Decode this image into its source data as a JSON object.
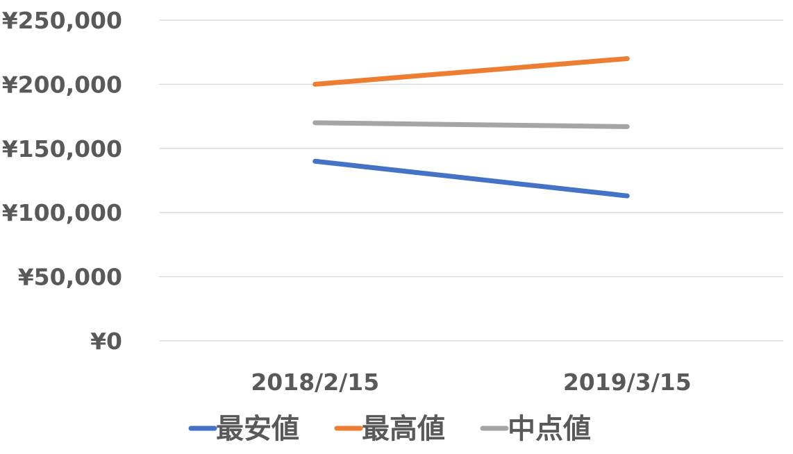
{
  "chart_data": {
    "type": "line",
    "title": "",
    "xlabel": "",
    "ylabel": "",
    "categories": [
      "2018/2/15",
      "2019/3/15"
    ],
    "ylim": [
      0,
      250000
    ],
    "yticks": [
      0,
      50000,
      100000,
      150000,
      200000,
      250000
    ],
    "ytick_labels": [
      "¥0",
      "¥50,000",
      "¥100,000",
      "¥150,000",
      "¥200,000",
      "¥250,000"
    ],
    "grid": true,
    "legend_position": "bottom",
    "series": [
      {
        "name": "最安値",
        "values": [
          140000,
          113000
        ],
        "color": "#4472c4"
      },
      {
        "name": "最高値",
        "values": [
          200000,
          220000
        ],
        "color": "#ed7d31"
      },
      {
        "name": "中点値",
        "values": [
          170000,
          167000
        ],
        "color": "#a5a5a5"
      }
    ]
  }
}
